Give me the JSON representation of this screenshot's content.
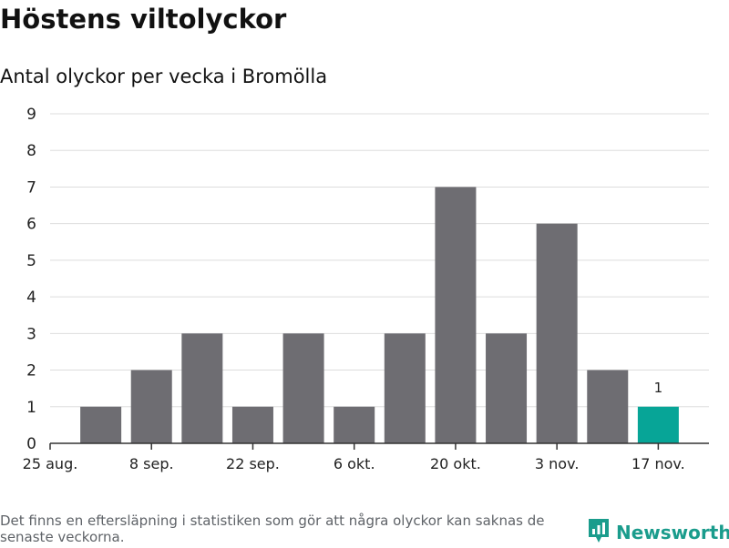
{
  "header": {
    "title": "Höstens viltolyckor",
    "subtitle": "Antal olyckor per vecka i Bromölla"
  },
  "footer": {
    "note": "Det finns en eftersläpning i statistiken som gör att några olyckor kan saknas de senaste veckorna.",
    "brand_name": "Newsworthy",
    "brand_icon": "newsworthy-logo-icon"
  },
  "colors": {
    "bar": "#6e6d72",
    "highlight": "#07a597",
    "grid": "#dddddd",
    "axis": "#333333",
    "brand": "#1a9c8c"
  },
  "chart_data": {
    "type": "bar",
    "title": "Höstens viltolyckor",
    "subtitle": "Antal olyckor per vecka i Bromölla",
    "xlabel": "",
    "ylabel": "",
    "ylim": [
      0,
      9
    ],
    "yticks": [
      0,
      1,
      2,
      3,
      4,
      5,
      6,
      7,
      8,
      9
    ],
    "grid": true,
    "x_start_week": 0,
    "x_end_week": 13,
    "week_centers": [
      1,
      2,
      3,
      4,
      5,
      6,
      7,
      8,
      9,
      10,
      11,
      12
    ],
    "values": [
      1,
      2,
      3,
      1,
      3,
      1,
      3,
      7,
      3,
      6,
      2,
      1
    ],
    "highlight_index": 11,
    "data_labels": [
      {
        "index": 11,
        "text": "1"
      }
    ],
    "xticks": [
      {
        "week": 0,
        "label": "25 aug."
      },
      {
        "week": 2,
        "label": "8 sep."
      },
      {
        "week": 4,
        "label": "22 sep."
      },
      {
        "week": 6,
        "label": "6 okt."
      },
      {
        "week": 8,
        "label": "20 okt."
      },
      {
        "week": 10,
        "label": "3 nov."
      },
      {
        "week": 12,
        "label": "17 nov."
      }
    ]
  }
}
